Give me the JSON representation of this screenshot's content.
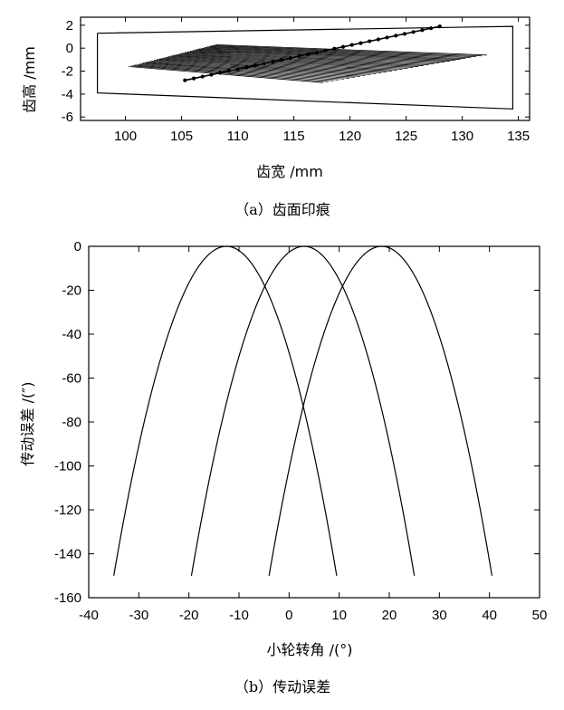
{
  "chart_data": [
    {
      "id": "a",
      "type": "line",
      "caption": "（a）齿面印痕",
      "xlabel": "齿宽 /mm",
      "ylabel": "齿高 /mm",
      "xlim": [
        96,
        136
      ],
      "ylim": [
        -6.3,
        2.7
      ],
      "xticks": [
        100,
        105,
        110,
        115,
        120,
        125,
        130,
        135
      ],
      "yticks": [
        2,
        0,
        -2,
        -4,
        -6
      ],
      "grid": false,
      "boundary": {
        "x": [
          97.5,
          134.5,
          134.5,
          97.5,
          97.5
        ],
        "y": [
          1.3,
          1.9,
          -5.3,
          -3.9,
          1.3
        ]
      },
      "contact_lines": {
        "count": 32,
        "x_start_first": 100.3,
        "x_start_last": 108.0,
        "x_end_first": 117.6,
        "x_end_last": 132.2,
        "y_start_first": -1.6,
        "y_start_last": 0.3,
        "y_end_first": -3.0,
        "y_end_last": -0.6
      },
      "path_of_contact": {
        "x": [
          105.3,
          128.0
        ],
        "y": [
          -2.8,
          1.9
        ],
        "marker_count": 30
      }
    },
    {
      "id": "b",
      "type": "line",
      "caption": "（b）传动误差",
      "xlabel": "小轮转角 /(°)",
      "ylabel": "传动误差 /(″)",
      "xlim": [
        -40,
        50
      ],
      "ylim": [
        -160,
        0
      ],
      "xticks": [
        -40,
        -30,
        -20,
        -10,
        0,
        10,
        20,
        30,
        40,
        50
      ],
      "yticks": [
        0,
        -20,
        -40,
        -60,
        -80,
        -100,
        -120,
        -140,
        -160
      ],
      "grid": false,
      "series": [
        {
          "vertex": -12.5,
          "x_range": [
            -35,
            9.5
          ]
        },
        {
          "vertex": 3.0,
          "x_range": [
            -19.5,
            25
          ]
        },
        {
          "vertex": 18.5,
          "x_range": [
            -4,
            40.5
          ]
        }
      ]
    }
  ]
}
